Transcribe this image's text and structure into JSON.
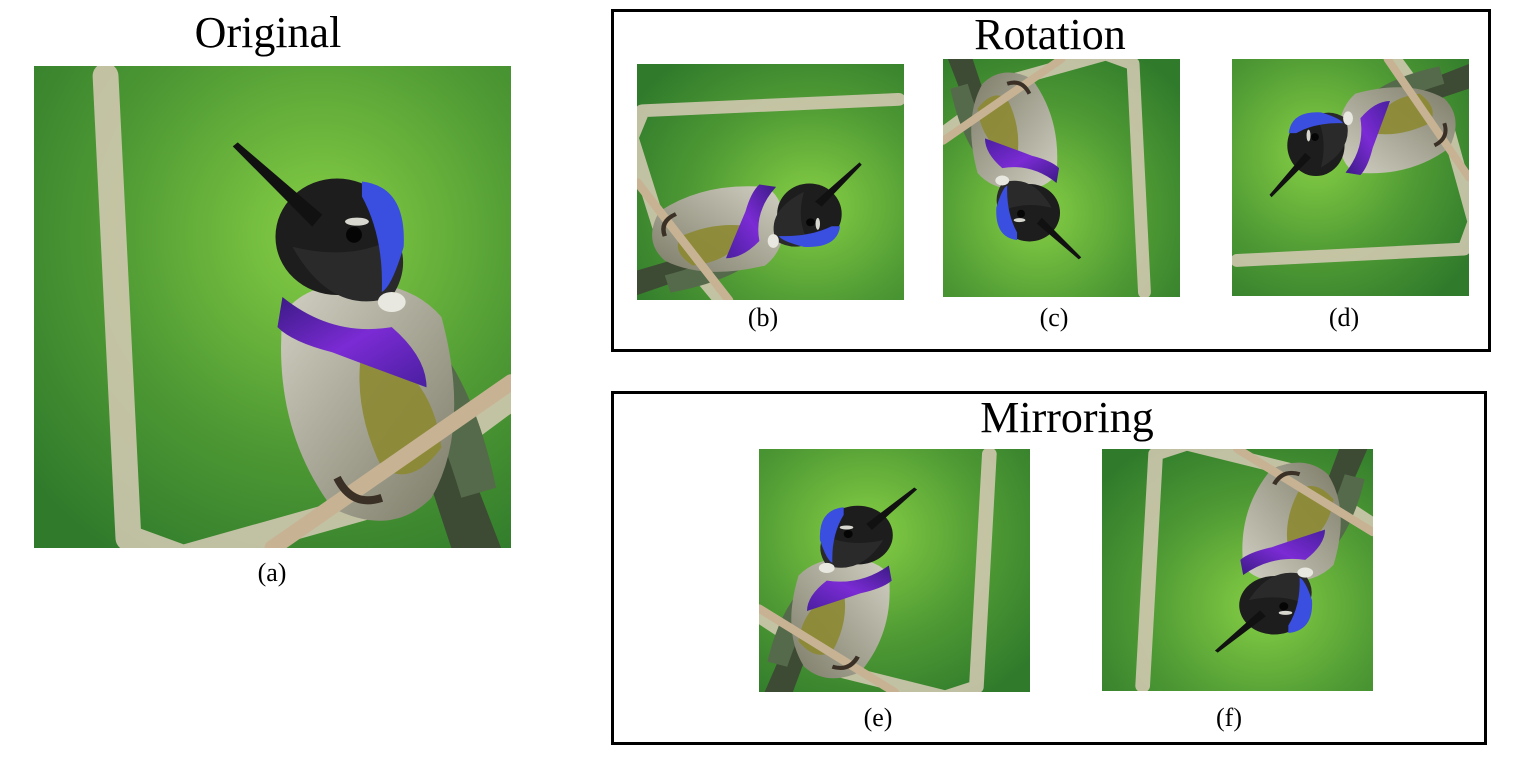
{
  "original": {
    "title": "Original",
    "caption": "(a)"
  },
  "rotation": {
    "title": "Rotation",
    "captions": [
      "(b)",
      "(c)",
      "(d)"
    ]
  },
  "mirroring": {
    "title": "Mirroring",
    "captions": [
      "(e)",
      "(f)"
    ]
  },
  "photo_subject": "hummingbird-icon",
  "colors": {
    "background_green": "#4f9a34",
    "background_light": "#7fc83f",
    "twig": "#d4c6b1",
    "throat_purple": "#6a1fb5",
    "crown_blue": "#3a4ee0",
    "belly": "#b9b7a0",
    "olive": "#8c8a32",
    "head": "#1d1d1d"
  }
}
